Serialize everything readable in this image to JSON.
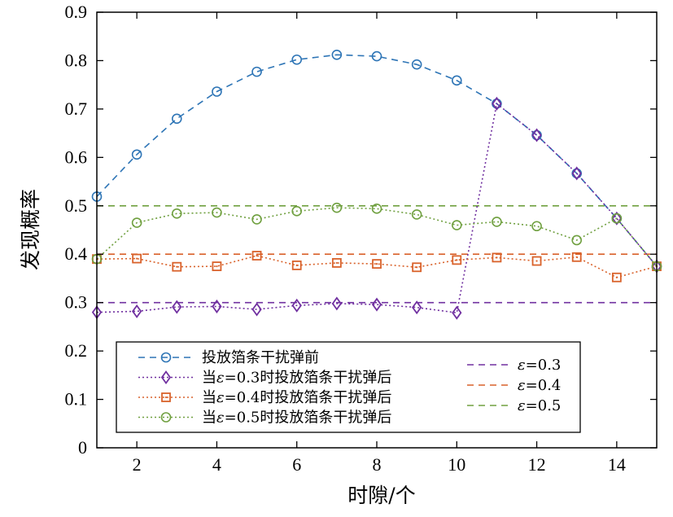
{
  "chart_data": {
    "type": "line",
    "xlabel": "时隙/个",
    "ylabel": "发现概率",
    "xlim": [
      1,
      15
    ],
    "ylim": [
      0,
      0.9
    ],
    "xticks": [
      2,
      4,
      6,
      8,
      10,
      12,
      14
    ],
    "yticks": [
      0,
      0.1,
      0.2,
      0.3,
      0.4,
      0.5,
      0.6,
      0.7,
      0.8,
      0.9
    ],
    "grid": false,
    "legend_position": "bottom-center",
    "series": [
      {
        "name": "投放箔条干扰弹前",
        "color": "#2e75b6",
        "marker": "circle",
        "line": "dashed",
        "x": [
          1,
          2,
          3,
          4,
          5,
          6,
          7,
          8,
          9,
          10,
          11,
          12,
          13,
          14,
          15
        ],
        "values": [
          0.519,
          0.606,
          0.68,
          0.736,
          0.777,
          0.802,
          0.812,
          0.809,
          0.792,
          0.759,
          0.711,
          0.646,
          0.567,
          0.474,
          0.375
        ]
      },
      {
        "name": "当ε=0.3时投放箔条干扰弹后",
        "color": "#7030a0",
        "marker": "diamond",
        "line": "dotted",
        "x": [
          1,
          2,
          3,
          4,
          5,
          6,
          7,
          8,
          9,
          10,
          11,
          12,
          13,
          14,
          15
        ],
        "values": [
          0.28,
          0.282,
          0.291,
          0.292,
          0.286,
          0.294,
          0.298,
          0.296,
          0.29,
          0.279,
          0.711,
          0.646,
          0.567,
          0.474,
          0.375
        ]
      },
      {
        "name": "当ε=0.4时投放箔条干扰弹后",
        "color": "#d9622b",
        "marker": "square",
        "line": "dotted",
        "x": [
          1,
          2,
          3,
          4,
          5,
          6,
          7,
          8,
          9,
          10,
          11,
          12,
          13,
          14,
          15
        ],
        "values": [
          0.39,
          0.391,
          0.374,
          0.375,
          0.397,
          0.377,
          0.382,
          0.38,
          0.373,
          0.388,
          0.393,
          0.386,
          0.394,
          0.352,
          0.375
        ]
      },
      {
        "name": "当ε=0.5时投放箔条干扰弹后",
        "color": "#70a040",
        "marker": "circle",
        "line": "dotted",
        "x": [
          1,
          2,
          3,
          4,
          5,
          6,
          7,
          8,
          9,
          10,
          11,
          12,
          13,
          14,
          15
        ],
        "values": [
          0.39,
          0.465,
          0.484,
          0.486,
          0.472,
          0.489,
          0.496,
          0.494,
          0.482,
          0.46,
          0.467,
          0.458,
          0.429,
          0.474,
          0.375
        ]
      }
    ],
    "thresholds": [
      {
        "name": "ε=0.3",
        "value": 0.3,
        "color": "#7030a0"
      },
      {
        "name": "ε=0.4",
        "value": 0.4,
        "color": "#d9622b"
      },
      {
        "name": "ε=0.5",
        "value": 0.5,
        "color": "#70a040"
      }
    ]
  }
}
